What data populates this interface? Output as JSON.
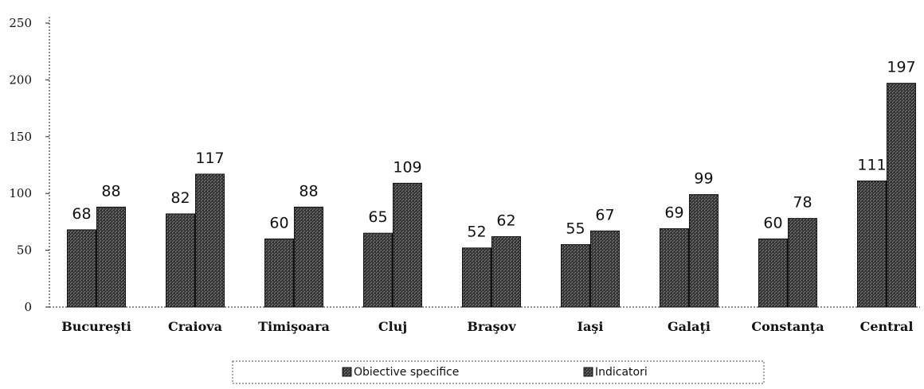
{
  "chart_data": {
    "type": "bar",
    "title": "",
    "xlabel": "",
    "ylabel": "",
    "ylim": [
      0,
      250
    ],
    "yticks": [
      0,
      50,
      100,
      150,
      200,
      250
    ],
    "categories": [
      "Bucureşti",
      "Craiova",
      "Timişoara",
      "Cluj",
      "Braşov",
      "Iaşi",
      "Galaţi",
      "Constanţa",
      "Central"
    ],
    "series": [
      {
        "name": "Obiective specifice",
        "values": [
          68,
          82,
          60,
          65,
          52,
          55,
          69,
          60,
          111
        ]
      },
      {
        "name": "Indicatori",
        "values": [
          88,
          117,
          88,
          109,
          62,
          67,
          99,
          78,
          197
        ]
      }
    ],
    "data_labels": true,
    "grid": false,
    "legend_position": "bottom",
    "colors": {
      "bar_fill": "#3a3a3a",
      "bar_stroke": "#111111",
      "axis": "#222222"
    }
  }
}
